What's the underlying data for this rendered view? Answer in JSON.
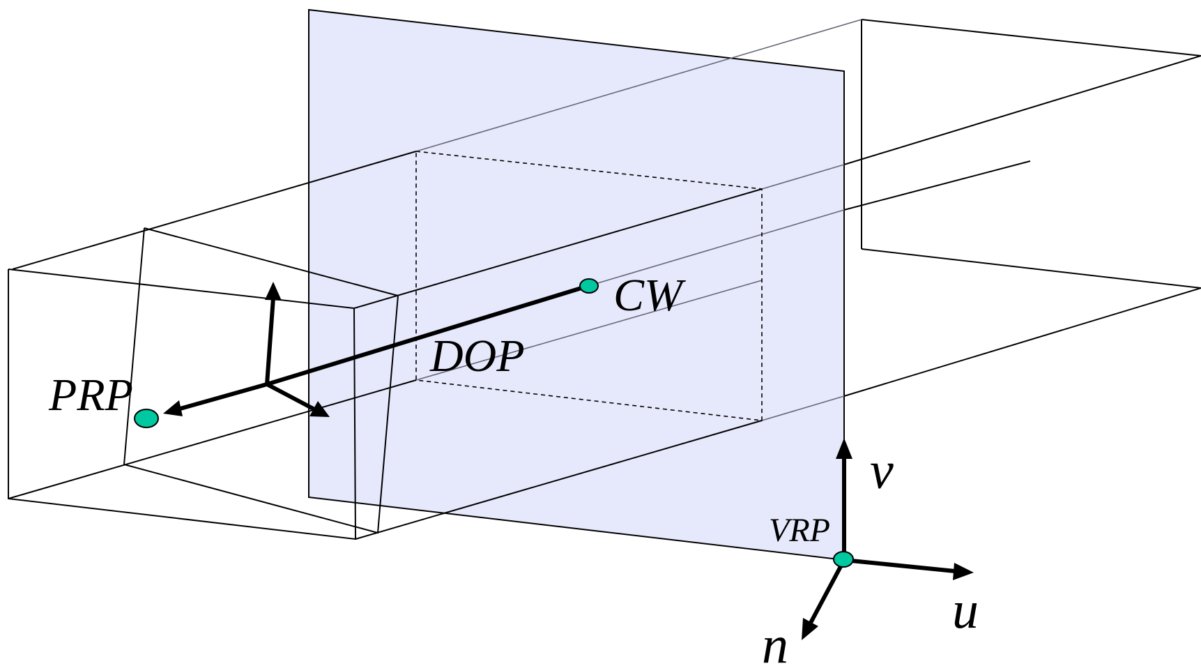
{
  "labels": {
    "prp": "PRP",
    "cw": "CW",
    "dop": "DOP",
    "vrp": "VRP",
    "u": "u",
    "v": "v",
    "n": "n"
  },
  "colors": {
    "view_plane_fill": "#e6e8fb",
    "point_fill": "#00c8a0",
    "line": "#000000",
    "background": "#ffffff"
  }
}
